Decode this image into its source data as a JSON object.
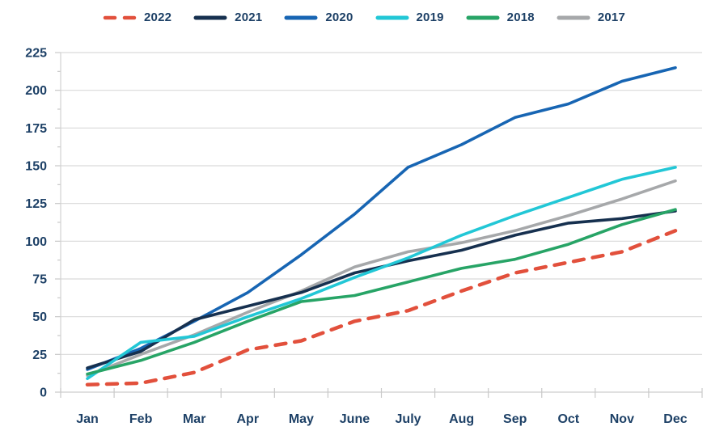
{
  "chart_data": {
    "type": "line",
    "title": "",
    "xlabel": "",
    "ylabel": "",
    "categories": [
      "Jan",
      "Feb",
      "Mar",
      "Apr",
      "May",
      "June",
      "July",
      "Aug",
      "Sep",
      "Oct",
      "Nov",
      "Dec"
    ],
    "y_ticks": [
      0,
      25,
      50,
      75,
      100,
      125,
      150,
      175,
      200,
      225
    ],
    "ylim": [
      0,
      225
    ],
    "grid": true,
    "legend_position": "top",
    "series": [
      {
        "name": "2022",
        "color": "#e2503c",
        "style": "dashed",
        "values": [
          5,
          6,
          13,
          28,
          34,
          47,
          54,
          67,
          79,
          86,
          93,
          107
        ]
      },
      {
        "name": "2021",
        "color": "#16304f",
        "style": "solid",
        "values": [
          16,
          27,
          48,
          57,
          66,
          79,
          87,
          94,
          104,
          112,
          115,
          120
        ]
      },
      {
        "name": "2020",
        "color": "#1765b3",
        "style": "solid",
        "values": [
          15,
          29,
          47,
          66,
          91,
          118,
          149,
          164,
          182,
          191,
          206,
          215
        ]
      },
      {
        "name": "2019",
        "color": "#22c7d6",
        "style": "solid",
        "values": [
          9,
          33,
          37,
          50,
          62,
          76,
          89,
          104,
          117,
          129,
          141,
          149
        ]
      },
      {
        "name": "2018",
        "color": "#27a466",
        "style": "solid",
        "values": [
          12,
          21,
          33,
          47,
          60,
          64,
          73,
          82,
          88,
          98,
          111,
          121
        ]
      },
      {
        "name": "2017",
        "color": "#a6a8aa",
        "style": "solid",
        "values": [
          11,
          25,
          38,
          53,
          67,
          83,
          93,
          99,
          107,
          117,
          128,
          140
        ]
      }
    ],
    "colors": {
      "grid_line": "#d9d9d9",
      "axis_line": "#d2d2d2",
      "tick_mark": "#c9c9c9",
      "label_text": "#1d4066"
    }
  }
}
